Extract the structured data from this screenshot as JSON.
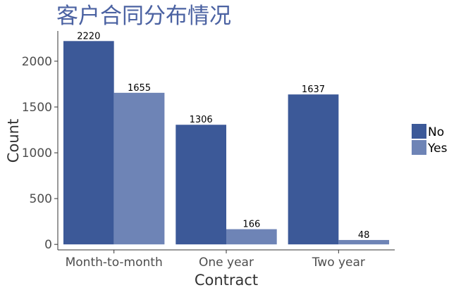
{
  "chart_data": {
    "type": "bar",
    "title": "客户合同分布情况",
    "xlabel": "Contract",
    "ylabel": "Count",
    "categories": [
      "Month-to-month",
      "One year",
      "Two year"
    ],
    "series": [
      {
        "name": "No",
        "values": [
          2220,
          1306,
          1637
        ],
        "color": "#3c5998"
      },
      {
        "name": "Yes",
        "values": [
          1655,
          166,
          48
        ],
        "color": "#6e84b6"
      }
    ],
    "ylim": [
      -60,
      2330
    ],
    "yticks": [
      0,
      500,
      1000,
      1500,
      2000
    ],
    "grid": false,
    "legend": "right"
  }
}
